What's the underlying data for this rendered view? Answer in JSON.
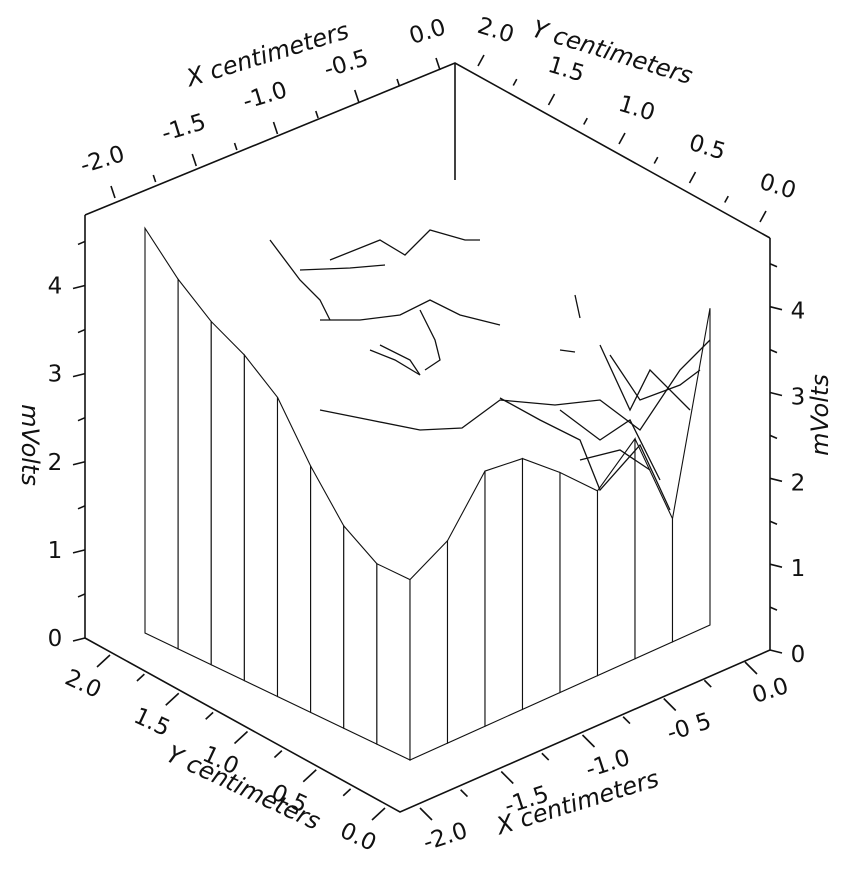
{
  "chart_data": {
    "type": "surface3d",
    "title": "",
    "x_axis": {
      "label": "X centimeters",
      "range": [
        -2.0,
        0.0
      ],
      "ticks": [
        "-2.0",
        "-1.5",
        "-1.0",
        "-0.5",
        "0.0"
      ],
      "bottom_ticks": [
        "-2.0",
        "-1.5",
        "-1.0",
        "-0 5",
        "0.0"
      ]
    },
    "y_axis": {
      "label": "Y centimeters",
      "range": [
        0.0,
        2.0
      ],
      "ticks": [
        "2.0",
        "1.5",
        "1.0",
        "0.5",
        "0.0"
      ]
    },
    "z_axis": {
      "label": "mVolts",
      "range": [
        0,
        4.5
      ],
      "ticks": [
        "0",
        "1",
        "2",
        "3",
        "4"
      ]
    },
    "front_left_edge": {
      "y_cm": [
        2.0,
        1.75,
        1.5,
        1.25,
        1.0,
        0.75,
        0.5,
        0.25,
        0.0
      ],
      "mvolts": [
        4.6,
        4.2,
        3.9,
        3.7,
        3.4,
        2.8,
        2.3,
        2.05,
        2.05
      ]
    },
    "front_right_edge": {
      "x_cm": [
        -2.0,
        -1.75,
        -1.5,
        -1.25,
        -1.0,
        -0.75,
        -0.5,
        -0.25,
        0.0
      ],
      "mvolts": [
        2.05,
        2.3,
        2.9,
        2.85,
        2.5,
        2.1,
        2.5,
        1.4,
        3.6
      ]
    }
  }
}
